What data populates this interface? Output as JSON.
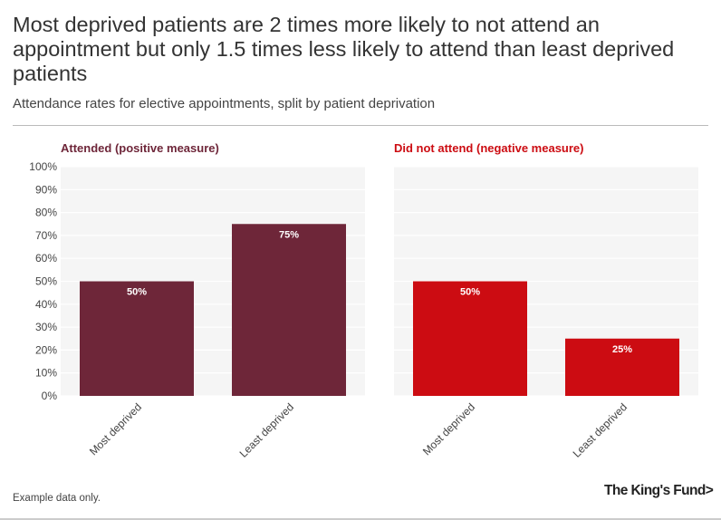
{
  "title": "Most deprived patients are 2 times more likely to not attend an appointment but only 1.5 times less likely to attend than least deprived patients",
  "subtitle": "Attendance rates for elective appointments, split by patient deprivation",
  "note": "Example data only.",
  "logo": "The King's Fund>",
  "chart_data": [
    {
      "type": "bar",
      "title": "Attended (positive measure)",
      "title_color": "#6e2639",
      "bar_color": "#6e2639",
      "categories": [
        "Most deprived",
        "Least deprived"
      ],
      "values": [
        50,
        75
      ],
      "labels": [
        "50%",
        "75%"
      ],
      "ylim": [
        0,
        100
      ],
      "yticks": [
        "0%",
        "10%",
        "20%",
        "30%",
        "40%",
        "50%",
        "60%",
        "70%",
        "80%",
        "90%",
        "100%"
      ]
    },
    {
      "type": "bar",
      "title": "Did not attend (negative measure)",
      "title_color": "#cc0c12",
      "bar_color": "#cc0c12",
      "categories": [
        "Most deprived",
        "Least deprived"
      ],
      "values": [
        50,
        25
      ],
      "labels": [
        "50%",
        "25%"
      ],
      "ylim": [
        0,
        100
      ]
    }
  ]
}
